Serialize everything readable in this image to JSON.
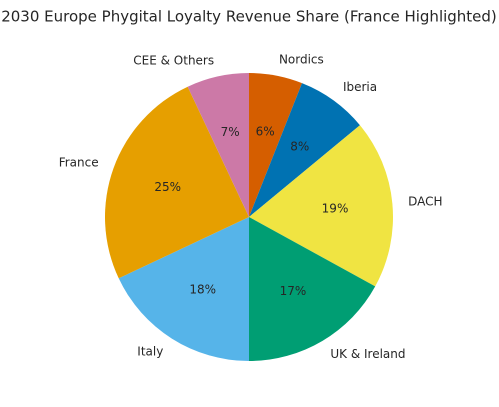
{
  "chart_data": {
    "type": "pie",
    "title": "2030 Europe Phygital Loyalty Revenue Share (France Highlighted)",
    "categories": [
      "Nordics",
      "Iberia",
      "DACH",
      "UK & Ireland",
      "Italy",
      "France",
      "CEE & Others"
    ],
    "values": [
      6,
      8,
      19,
      17,
      18,
      25,
      7
    ],
    "value_labels": [
      "6%",
      "8%",
      "19%",
      "17%",
      "18%",
      "25%",
      "7%"
    ],
    "colors": [
      "#D55E00",
      "#0072B2",
      "#F0E442",
      "#009E73",
      "#56B4E9",
      "#E69F00",
      "#CC79A7"
    ]
  }
}
